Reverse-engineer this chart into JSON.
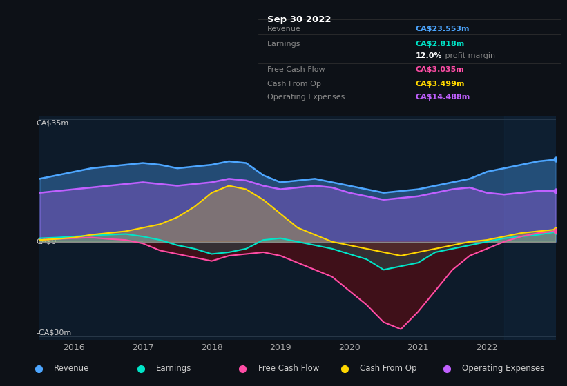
{
  "bg_color": "#0d1117",
  "plot_bg_color": "#0d1b2a",
  "title_box": {
    "date": "Sep 30 2022",
    "rows": [
      {
        "label": "Revenue",
        "value": "CA$23.553m",
        "color": "#4da6ff"
      },
      {
        "label": "Earnings",
        "value": "CA$2.818m",
        "color": "#00e5c8"
      },
      {
        "label": "",
        "value": "12.0% profit margin",
        "color": "#ffffff"
      },
      {
        "label": "Free Cash Flow",
        "value": "CA$3.035m",
        "color": "#ff4da6"
      },
      {
        "label": "Cash From Op",
        "value": "CA$3.499m",
        "color": "#ffd700"
      },
      {
        "label": "Operating Expenses",
        "value": "CA$14.488m",
        "color": "#c060ff"
      }
    ]
  },
  "ylabel_top": "CA$35m",
  "ylabel_zero": "CA$0",
  "ylabel_bottom": "-CA$30m",
  "ylim": [
    30,
    -25
  ],
  "xlim": [
    2015.5,
    2023.0
  ],
  "xticks": [
    2016,
    2017,
    2018,
    2019,
    2020,
    2021,
    2022
  ],
  "legend": [
    {
      "label": "Revenue",
      "color": "#4da6ff"
    },
    {
      "label": "Earnings",
      "color": "#00e5c8"
    },
    {
      "label": "Free Cash Flow",
      "color": "#ff4da6"
    },
    {
      "label": "Cash From Op",
      "color": "#ffd700"
    },
    {
      "label": "Operating Expenses",
      "color": "#c060ff"
    }
  ],
  "series": {
    "x": [
      2015.5,
      2015.75,
      2016.0,
      2016.25,
      2016.5,
      2016.75,
      2017.0,
      2017.25,
      2017.5,
      2017.75,
      2018.0,
      2018.25,
      2018.5,
      2018.75,
      2019.0,
      2019.25,
      2019.5,
      2019.75,
      2020.0,
      2020.25,
      2020.5,
      2020.75,
      2021.0,
      2021.25,
      2021.5,
      2021.75,
      2022.0,
      2022.25,
      2022.5,
      2022.75,
      2023.0
    ],
    "revenue": [
      18,
      19,
      20,
      21,
      21.5,
      22,
      22.5,
      22,
      21,
      21.5,
      22,
      23,
      22.5,
      19,
      17,
      17.5,
      18,
      17,
      16,
      15,
      14,
      14.5,
      15,
      16,
      17,
      18,
      20,
      21,
      22,
      23,
      23.5
    ],
    "earnings": [
      1,
      1.2,
      1.5,
      1.8,
      2,
      2.2,
      1.5,
      0.5,
      -1,
      -2,
      -3.5,
      -3,
      -2,
      0.5,
      1,
      0,
      -1,
      -2,
      -3.5,
      -5,
      -8,
      -7,
      -6,
      -3,
      -2,
      -1,
      0,
      1,
      1.5,
      2,
      2.8
    ],
    "fcf": [
      0.5,
      0.8,
      1,
      1.2,
      0.8,
      0.5,
      -0.5,
      -2.5,
      -3.5,
      -4.5,
      -5.5,
      -4,
      -3.5,
      -3,
      -4,
      -6,
      -8,
      -10,
      -14,
      -18,
      -23,
      -25,
      -20,
      -14,
      -8,
      -4,
      -2,
      0,
      1.5,
      2.5,
      3
    ],
    "cash_from_op": [
      0.5,
      0.8,
      1.2,
      2,
      2.5,
      3,
      4,
      5,
      7,
      10,
      14,
      16,
      15,
      12,
      8,
      4,
      2,
      0,
      -1,
      -2,
      -3,
      -4,
      -3,
      -2,
      -1,
      0,
      0.5,
      1.5,
      2.5,
      3,
      3.5
    ],
    "op_expenses": [
      14,
      14.5,
      15,
      15.5,
      16,
      16.5,
      17,
      16.5,
      16,
      16.5,
      17,
      18,
      17.5,
      16,
      15,
      15.5,
      16,
      15.5,
      14,
      13,
      12,
      12.5,
      13,
      14,
      15,
      15.5,
      14,
      13.5,
      14,
      14.5,
      14.5
    ]
  },
  "shaded_region_end": 2022.25,
  "revenue_color": "#4da6ff",
  "earnings_color": "#00e5c8",
  "fcf_color": "#ff4da6",
  "cash_from_op_color": "#ffd700",
  "op_expenses_color": "#c060ff"
}
